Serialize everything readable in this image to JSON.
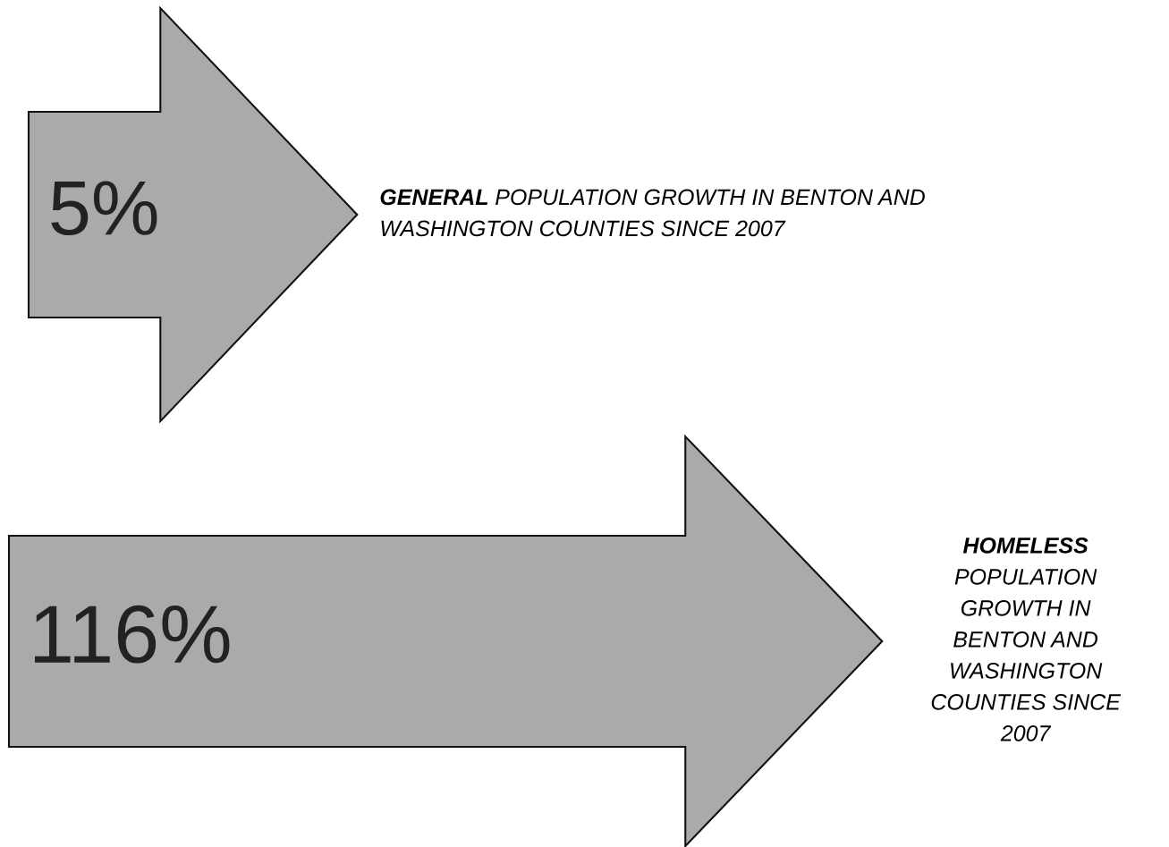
{
  "chart_data": {
    "type": "other",
    "categories": [
      "GENERAL POPULATION GROWTH IN BENTON AND\nWASHINGTON COUNTIES SINCE 2007",
      "HOMELESS\nPOPULATION\nGROWTH IN\nBENTON AND\nWASHINGTON\nCOUNTIES SINCE\n2007"
    ],
    "values": [
      5,
      116
    ],
    "value_labels": [
      "5%",
      "116%"
    ],
    "colors": [
      "#aaaaaa",
      "#aaaaaa"
    ]
  }
}
